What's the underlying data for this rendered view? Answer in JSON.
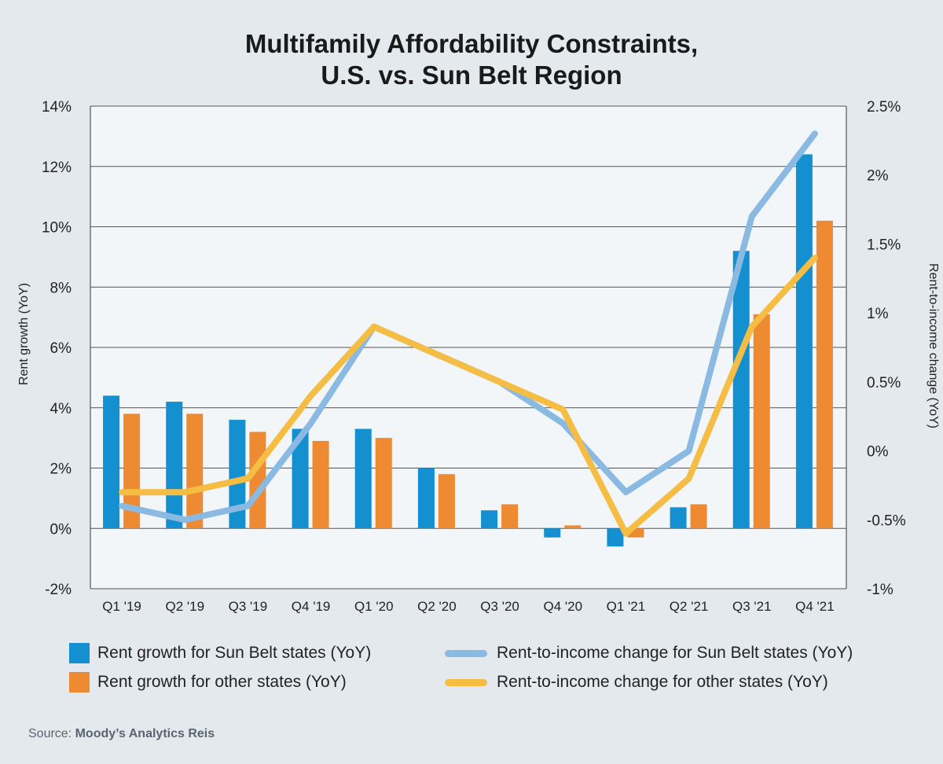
{
  "title_lines": [
    "Multifamily Affordability Constraints,",
    "U.S. vs. Sun Belt Region"
  ],
  "source": {
    "prefix": "Source:",
    "name": "Moody’s Analytics Reis"
  },
  "legend": {
    "bar_sunbelt": "Rent growth for Sun Belt states (YoY)",
    "bar_other": "Rent growth for other states (YoY)",
    "line_sunbelt": "Rent-to-income change for Sun Belt states (YoY)",
    "line_other": "Rent-to-income change for other states (YoY)"
  },
  "colors": {
    "bar_sunbelt": "#1490d0",
    "bar_other": "#ed8a32",
    "line_sunbelt": "#8ab9e2",
    "line_other": "#f6bd45",
    "plot_bg": "#f2f6f8",
    "page_bg": "#e4e9ee"
  },
  "chart_data": {
    "type": "bar",
    "categories": [
      "Q1 '19",
      "Q2 '19",
      "Q3 '19",
      "Q4 '19",
      "Q1 '20",
      "Q2 '20",
      "Q3 '20",
      "Q4 '20",
      "Q1 '21",
      "Q2 '21",
      "Q3 '21",
      "Q4 '21"
    ],
    "ylabel": "Rent growth (YoY)",
    "y2label": "Rent-to-income change (YoY)",
    "ylim": [
      -2,
      14
    ],
    "y2lim": [
      -1,
      2.5
    ],
    "yticks": [
      "-2%",
      "0%",
      "2%",
      "4%",
      "6%",
      "8%",
      "10%",
      "12%",
      "14%"
    ],
    "y2ticks": [
      "-1%",
      "-0.5%",
      "0%",
      "0.5%",
      "1%",
      "1.5%",
      "2%",
      "2.5%"
    ],
    "grid": true,
    "series": [
      {
        "name": "Rent growth for Sun Belt states (YoY)",
        "kind": "bar",
        "axis": "left",
        "values": [
          4.4,
          4.2,
          3.6,
          3.3,
          3.3,
          2.0,
          0.6,
          -0.3,
          -0.6,
          0.7,
          9.2,
          12.4
        ]
      },
      {
        "name": "Rent growth for other states (YoY)",
        "kind": "bar",
        "axis": "left",
        "values": [
          3.8,
          3.8,
          3.2,
          2.9,
          3.0,
          1.8,
          0.8,
          0.1,
          -0.3,
          0.8,
          7.1,
          10.2
        ]
      },
      {
        "name": "Rent-to-income change for Sun Belt states (YoY)",
        "kind": "line",
        "axis": "right",
        "values": [
          -0.4,
          -0.5,
          -0.4,
          0.2,
          0.9,
          0.7,
          0.5,
          0.2,
          -0.3,
          0.0,
          1.7,
          2.3
        ]
      },
      {
        "name": "Rent-to-income change for other states (YoY)",
        "kind": "line",
        "axis": "right",
        "values": [
          -0.3,
          -0.3,
          -0.2,
          0.4,
          0.9,
          0.7,
          0.5,
          0.3,
          -0.6,
          -0.2,
          0.9,
          1.4
        ]
      }
    ]
  }
}
